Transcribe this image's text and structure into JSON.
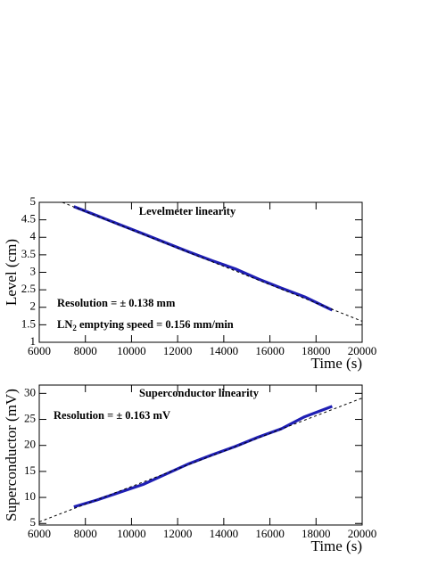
{
  "chart_data": [
    {
      "type": "line",
      "xlabel": "Time (s)",
      "ylabel": "Level (cm)",
      "xlim": [
        6000,
        20000
      ],
      "xticks": [
        6000,
        8000,
        10000,
        12000,
        14000,
        16000,
        18000,
        20000
      ],
      "ylim": [
        1,
        5
      ],
      "yticks": [
        1,
        1.5,
        2,
        2.5,
        3,
        3.5,
        4,
        4.5,
        5
      ],
      "annotations": [
        {
          "text": "Levelmeter linearity"
        },
        {
          "text": "Resolution = ± 0.138 mm"
        },
        {
          "text": "LN",
          "sub": "2",
          "rest": " emptying speed = 0.156 mm/min"
        }
      ],
      "series": [
        {
          "color": "#1f1fb4",
          "x": [
            7500,
            8500,
            9500,
            10500,
            11500,
            12500,
            13500,
            14500,
            15500,
            16500,
            17500,
            18700
          ],
          "values": [
            4.88,
            4.62,
            4.36,
            4.1,
            3.84,
            3.58,
            3.33,
            3.1,
            2.81,
            2.55,
            2.3,
            1.92
          ]
        },
        {
          "color": "#000000",
          "dashed": true,
          "x": [
            7000,
            20000
          ],
          "values": [
            5.0,
            1.6
          ]
        }
      ]
    },
    {
      "type": "line",
      "xlabel": "Time (s)",
      "ylabel": "Superconductor (mV)",
      "xlim": [
        6000,
        20000
      ],
      "xticks": [
        6000,
        8000,
        10000,
        12000,
        14000,
        16000,
        18000,
        20000
      ],
      "ylim": [
        4.7,
        31.6
      ],
      "yticks": [
        5,
        10,
        15,
        20,
        25,
        30
      ],
      "annotations": [
        {
          "text": "Superconductor linearity"
        },
        {
          "text": "Resolution = ± 0.163 mV"
        }
      ],
      "series": [
        {
          "color": "#1f1fb4",
          "x": [
            7500,
            8500,
            9500,
            10500,
            11500,
            12500,
            13500,
            14500,
            15500,
            16500,
            17500,
            18700
          ],
          "values": [
            8.2,
            9.5,
            11.0,
            12.5,
            14.5,
            16.5,
            18.2,
            19.8,
            21.6,
            23.2,
            25.5,
            27.5
          ]
        },
        {
          "color": "#000000",
          "dashed": true,
          "x": [
            6000,
            20000
          ],
          "values": [
            5.3,
            29.1
          ]
        }
      ]
    }
  ]
}
